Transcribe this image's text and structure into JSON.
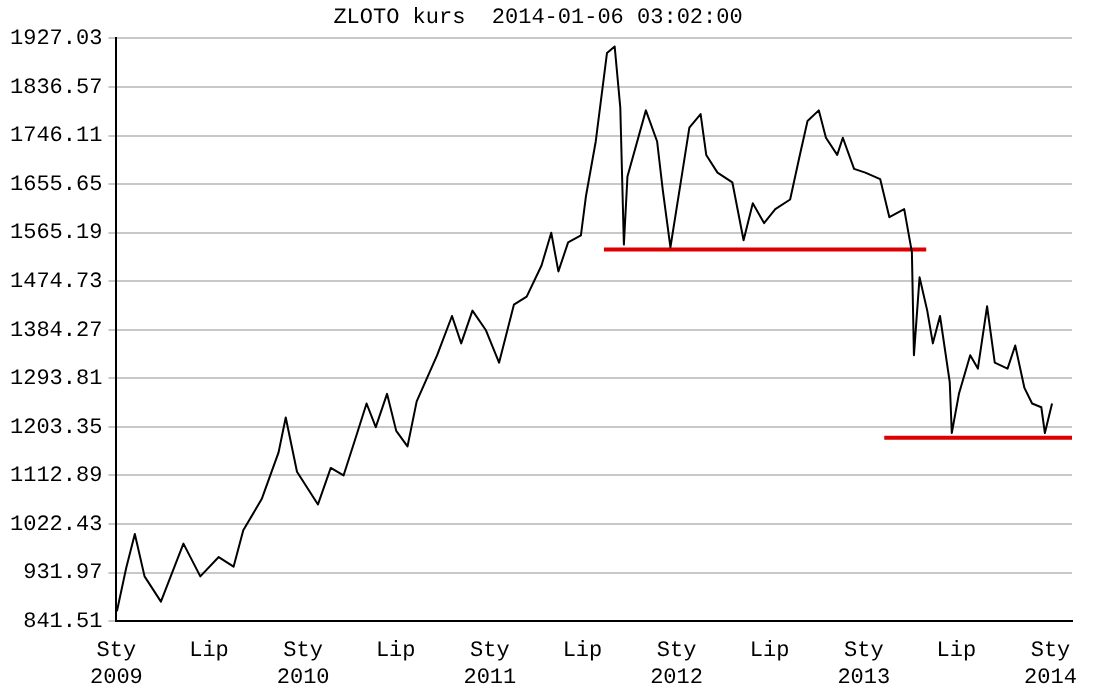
{
  "chart_data": {
    "type": "line",
    "title": "ZLOTO kurs  2014-01-06 03:02:00",
    "xlim": [
      "2009-01-01",
      "2014-02-12"
    ],
    "xticks": [
      {
        "value": "2009-01-01",
        "label": "Sty 2009"
      },
      {
        "value": "2009-07-01",
        "label": "Lip"
      },
      {
        "value": "2010-01-01",
        "label": "Sty 2010"
      },
      {
        "value": "2010-07-01",
        "label": "Lip"
      },
      {
        "value": "2011-01-01",
        "label": "Sty 2011"
      },
      {
        "value": "2011-07-01",
        "label": "Lip"
      },
      {
        "value": "2012-01-01",
        "label": "Sty 2012"
      },
      {
        "value": "2012-07-01",
        "label": "Lip"
      },
      {
        "value": "2013-01-01",
        "label": "Sty 2013"
      },
      {
        "value": "2013-07-01",
        "label": "Lip"
      },
      {
        "value": "2014-01-01",
        "label": "Sty 2014"
      }
    ],
    "ylim": [
      841.51,
      1927.03
    ],
    "yticks": [
      841.51,
      931.97,
      1022.43,
      1112.89,
      1203.35,
      1293.81,
      1384.27,
      1474.73,
      1565.19,
      1655.65,
      1746.11,
      1836.57,
      1927.03
    ],
    "grid": "y",
    "legend": false,
    "marker": "none",
    "line_style": "solid",
    "series": [
      {
        "color": "#000000",
        "x": [
          "2009-01-02",
          "2009-01-20",
          "2009-02-06",
          "2009-02-25",
          "2009-03-29",
          "2009-05-12",
          "2009-06-14",
          "2009-07-20",
          "2009-08-18",
          "2009-09-06",
          "2009-10-12",
          "2009-11-14",
          "2009-11-28",
          "2009-12-20",
          "2010-01-30",
          "2010-02-24",
          "2010-03-21",
          "2010-04-12",
          "2010-05-05",
          "2010-05-23",
          "2010-06-14",
          "2010-07-02",
          "2010-07-24",
          "2010-08-11",
          "2010-09-20",
          "2010-10-19",
          "2010-11-06",
          "2010-11-28",
          "2010-12-24",
          "2011-01-19",
          "2011-02-17",
          "2011-03-14",
          "2011-04-12",
          "2011-05-01",
          "2011-05-15",
          "2011-06-03",
          "2011-06-28",
          "2011-07-08",
          "2011-07-27",
          "2011-08-18",
          "2011-09-02",
          "2011-09-13",
          "2011-09-20",
          "2011-09-27",
          "2011-11-02",
          "2011-11-24",
          "2011-12-05",
          "2011-12-20",
          "2012-01-11",
          "2012-01-26",
          "2012-02-17",
          "2012-02-28",
          "2012-03-21",
          "2012-04-19",
          "2012-05-11",
          "2012-05-29",
          "2012-06-20",
          "2012-07-12",
          "2012-08-10",
          "2012-08-29",
          "2012-09-13",
          "2012-10-05",
          "2012-10-19",
          "2012-11-10",
          "2012-11-21",
          "2012-12-13",
          "2013-01-04",
          "2013-02-02",
          "2013-02-20",
          "2013-03-21",
          "2013-04-05",
          "2013-04-09",
          "2013-04-20",
          "2013-05-05",
          "2013-05-16",
          "2013-05-30",
          "2013-06-18",
          "2013-06-22",
          "2013-07-06",
          "2013-07-28",
          "2013-08-12",
          "2013-08-30",
          "2013-09-14",
          "2013-10-09",
          "2013-10-24",
          "2013-11-11",
          "2013-11-26",
          "2013-12-14",
          "2013-12-21",
          "2014-01-04"
        ],
        "values": [
          860,
          940,
          1004,
          925,
          878,
          986,
          925,
          961,
          943,
          1011,
          1069,
          1156,
          1221,
          1120,
          1059,
          1127,
          1113,
          1178,
          1247,
          1203,
          1265,
          1196,
          1167,
          1251,
          1337,
          1410,
          1359,
          1420,
          1384,
          1323,
          1431,
          1446,
          1504,
          1565,
          1493,
          1547,
          1560,
          1634,
          1735,
          1900,
          1912,
          1798,
          1543,
          1670,
          1793,
          1735,
          1645,
          1538,
          1670,
          1761,
          1786,
          1710,
          1677,
          1659,
          1551,
          1620,
          1583,
          1609,
          1627,
          1710,
          1773,
          1793,
          1742,
          1710,
          1742,
          1684,
          1677,
          1665,
          1594,
          1609,
          1529,
          1337,
          1482,
          1420,
          1359,
          1410,
          1287,
          1192,
          1265,
          1337,
          1312,
          1428,
          1323,
          1312,
          1355,
          1276,
          1247,
          1240,
          1192,
          1247
        ]
      },
      {
        "type": "line",
        "color": "#dd0000",
        "x": [
          "2011-08-12",
          "2013-05-03"
        ],
        "values": [
          1534,
          1534
        ]
      },
      {
        "type": "line",
        "color": "#dd0000",
        "x": [
          "2013-02-10",
          "2014-02-12"
        ],
        "values": [
          1183,
          1183
        ]
      }
    ]
  }
}
